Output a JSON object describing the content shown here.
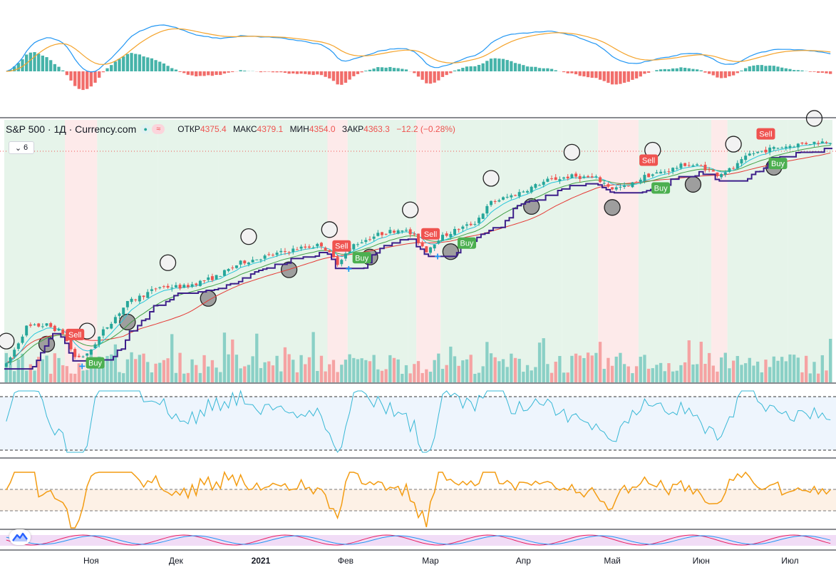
{
  "legend": {
    "symbol": "S&P 500 · 1Д · Currency.com",
    "open_label": "ОТКР",
    "open_value": "4375.4",
    "high_label": "МАКС",
    "high_value": "4379.1",
    "low_label": "МИН",
    "low_value": "4354.0",
    "close_label": "ЗАКР",
    "close_value": "4363.3",
    "change": "−12.2 (−0.28%)",
    "collapse_count": "6"
  },
  "colors": {
    "up": "#26a69a",
    "down": "#ef5350",
    "macd_line": "#2196f3",
    "signal_line": "#f4a32b",
    "channel": "#3d1f8a",
    "rsi_line": "#38b8d6",
    "osc_line": "#f39c12"
  },
  "chart_data": {
    "type": "candlestick",
    "x_labels": [
      "Ноя",
      "Дек",
      "2021",
      "Фев",
      "Мар",
      "Апр",
      "Май",
      "Июн",
      "Июл"
    ],
    "bold_x_labels": [
      "2021"
    ],
    "price_range": [
      3200,
      4400
    ],
    "anchor_path": [
      [
        0,
        3250
      ],
      [
        5,
        3440
      ],
      [
        10,
        3450
      ],
      [
        14,
        3410
      ],
      [
        17,
        3290
      ],
      [
        20,
        3300
      ],
      [
        24,
        3420
      ],
      [
        30,
        3560
      ],
      [
        38,
        3640
      ],
      [
        44,
        3640
      ],
      [
        52,
        3690
      ],
      [
        58,
        3760
      ],
      [
        66,
        3800
      ],
      [
        72,
        3830
      ],
      [
        78,
        3850
      ],
      [
        82,
        3760
      ],
      [
        86,
        3850
      ],
      [
        92,
        3900
      ],
      [
        98,
        3930
      ],
      [
        101,
        3890
      ],
      [
        104,
        3820
      ],
      [
        107,
        3880
      ],
      [
        111,
        3920
      ],
      [
        116,
        3960
      ],
      [
        120,
        4060
      ],
      [
        126,
        4100
      ],
      [
        134,
        4170
      ],
      [
        140,
        4190
      ],
      [
        146,
        4180
      ],
      [
        150,
        4130
      ],
      [
        154,
        4140
      ],
      [
        158,
        4190
      ],
      [
        164,
        4220
      ],
      [
        168,
        4250
      ],
      [
        172,
        4240
      ],
      [
        176,
        4200
      ],
      [
        180,
        4230
      ],
      [
        184,
        4300
      ],
      [
        190,
        4330
      ],
      [
        198,
        4355
      ],
      [
        204,
        4365
      ]
    ],
    "signals": [
      {
        "type": "Sell",
        "x": 17
      },
      {
        "type": "Buy",
        "x": 22
      },
      {
        "type": "Sell",
        "x": 83
      },
      {
        "type": "Buy",
        "x": 88
      },
      {
        "type": "Sell",
        "x": 105
      },
      {
        "type": "Buy",
        "x": 114
      },
      {
        "type": "Sell",
        "x": 159
      },
      {
        "type": "Buy",
        "x": 162
      },
      {
        "type": "Sell",
        "x": 188
      },
      {
        "type": "Buy",
        "x": 191
      }
    ],
    "indicators": [
      "MACD",
      "Volume",
      "RSI",
      "Oscillator",
      "Stochastic"
    ]
  }
}
